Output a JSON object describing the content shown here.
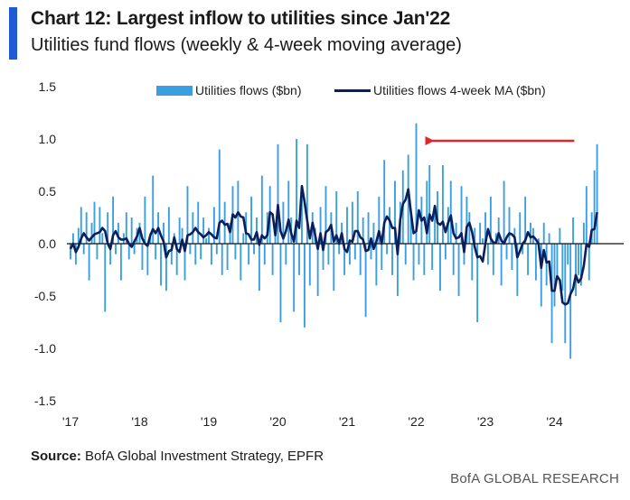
{
  "header": {
    "title": "Chart 12: Largest inflow to utilities since Jan'22",
    "subtitle": "Utilities fund flows (weekly & 4-week moving average)"
  },
  "footer": {
    "source_label": "Source:",
    "source_text": "BofA Global Investment Strategy, EPFR",
    "brand": "BofA GLOBAL RESEARCH"
  },
  "colors": {
    "accent": "#1f5bd6",
    "weekly": "#3a9fe0",
    "ma": "#0b1f5c",
    "arrow": "#e3242b"
  },
  "chart_data": {
    "type": "bar",
    "y_unit": "$bn",
    "ylim": [
      -1.5,
      1.5
    ],
    "y_ticks": [
      "1.5",
      "1.0",
      "0.5",
      "0.0",
      "-0.5",
      "-1.0",
      "-1.5"
    ],
    "y_tick_values": [
      1.5,
      1.0,
      0.5,
      0.0,
      -0.5,
      -1.0,
      -1.5
    ],
    "x_ticks": [
      "'17",
      "'18",
      "'19",
      "'20",
      "'21",
      "'22",
      "'23",
      "'24"
    ],
    "x_range": [
      "2017-01",
      "2024-06"
    ],
    "legend": {
      "placement": "top",
      "weekly_label": "Utilities flows ($bn)",
      "ma_label": "Utilities flows 4-week MA ($bn)"
    },
    "annotation": {
      "type": "arrow",
      "from": "2024-06",
      "to": "2022-01",
      "level": 1.0
    },
    "series": [
      {
        "name": "Utilities flows ($bn)",
        "kind": "bar",
        "points_per_year": 26,
        "values": [
          -0.15,
          0.1,
          -0.2,
          0.15,
          0.35,
          -0.1,
          0.3,
          -0.35,
          0.2,
          0.4,
          -0.15,
          0.35,
          0.1,
          -0.65,
          0.3,
          -0.2,
          0.45,
          -0.1,
          0.2,
          -0.35,
          0.1,
          0.3,
          -0.15,
          0.25,
          -0.1,
          0.15,
          0.2,
          -0.25,
          0.45,
          -0.3,
          0.1,
          0.65,
          -0.15,
          0.3,
          -0.4,
          0.2,
          -0.45,
          0.35,
          -0.2,
          0.1,
          -0.3,
          0.25,
          0.15,
          -0.35,
          0.55,
          -0.1,
          0.3,
          -0.2,
          0.4,
          -0.15,
          0.25,
          0.05,
          0.15,
          -0.2,
          0.35,
          -0.1,
          0.9,
          -0.3,
          0.4,
          -0.25,
          0.2,
          0.55,
          -0.15,
          0.6,
          -0.35,
          0.1,
          0.3,
          -0.2,
          0.45,
          -0.1,
          0.25,
          -0.45,
          0.65,
          -0.2,
          0.3,
          0.55,
          -0.3,
          0.2,
          0.95,
          -0.75,
          0.4,
          -0.2,
          0.6,
          0.25,
          -0.65,
          1.0,
          -0.3,
          0.5,
          -0.8,
          0.95,
          -0.4,
          0.3,
          0.15,
          -0.5,
          0.35,
          -0.25,
          0.55,
          -0.2,
          0.3,
          -0.45,
          0.5,
          -0.1,
          0.2,
          -0.3,
          0.35,
          -0.2,
          0.4,
          -0.15,
          0.5,
          -0.3,
          0.25,
          -0.7,
          0.3,
          -0.15,
          0.2,
          -0.4,
          0.45,
          -0.25,
          0.8,
          -0.1,
          0.35,
          -0.3,
          0.6,
          -0.5,
          0.4,
          0.7,
          -0.2,
          0.85,
          0.3,
          -0.35,
          1.15,
          -0.2,
          0.45,
          -0.3,
          0.6,
          0.75,
          -0.25,
          0.3,
          0.5,
          -0.45,
          0.75,
          -0.15,
          0.35,
          0.6,
          -0.3,
          0.2,
          -0.5,
          0.55,
          -0.2,
          0.45,
          0.3,
          -0.35,
          0.15,
          -0.75,
          0.2,
          0.05,
          0.3,
          -0.2,
          0.45,
          -0.3,
          0.1,
          0.25,
          -0.4,
          0.6,
          -0.15,
          0.35,
          -0.25,
          0.15,
          -0.5,
          0.3,
          -0.1,
          0.45,
          -0.3,
          0.2,
          0.15,
          -0.35,
          0.05,
          -0.6,
          0.2,
          -0.4,
          0.1,
          -0.95,
          -0.6,
          -0.3,
          0.15,
          -0.45,
          -0.95,
          -0.2,
          -1.1,
          0.25,
          -0.5,
          -0.3,
          -0.4,
          0.2,
          0.55,
          -0.35,
          0.3,
          0.7,
          0.95
        ]
      },
      {
        "name": "Utilities flows 4-week MA ($bn)",
        "kind": "line",
        "points_per_year": 26,
        "values": [
          -0.05,
          0.0,
          -0.08,
          -0.03,
          0.05,
          0.1,
          0.06,
          0.03,
          0.06,
          0.09,
          0.1,
          0.11,
          0.15,
          0.12,
          0.0,
          -0.05,
          0.08,
          0.12,
          0.06,
          0.04,
          0.04,
          0.05,
          0.0,
          -0.03,
          0.02,
          0.07,
          0.15,
          0.05,
          0.0,
          -0.02,
          0.08,
          0.14,
          0.1,
          0.15,
          0.08,
          0.02,
          -0.13,
          -0.07,
          -0.06,
          0.06,
          -0.05,
          -0.08,
          0.04,
          -0.07,
          0.08,
          0.09,
          0.11,
          0.15,
          0.11,
          0.09,
          0.06,
          0.08,
          0.11,
          0.09,
          0.06,
          0.05,
          0.2,
          0.22,
          0.18,
          0.19,
          0.11,
          0.28,
          0.25,
          0.3,
          0.26,
          0.25,
          0.1,
          0.09,
          0.04,
          0.04,
          0.11,
          -0.01,
          0.08,
          0.05,
          0.08,
          0.3,
          0.28,
          0.08,
          0.37,
          0.12,
          0.05,
          0.12,
          0.23,
          0.1,
          0.02,
          0.22,
          0.15,
          0.55,
          0.4,
          0.22,
          0.05,
          0.2,
          0.08,
          -0.05,
          0.1,
          -0.06,
          0.11,
          0.13,
          0.18,
          0.02,
          0.08,
          0.0,
          0.1,
          -0.05,
          -0.08,
          0.03,
          0.02,
          0.12,
          0.12,
          0.06,
          0.04,
          -0.07,
          -0.06,
          0.05,
          -0.05,
          0.02,
          0.12,
          0.0,
          0.2,
          0.26,
          0.22,
          0.15,
          0.15,
          -0.1,
          0.23,
          0.38,
          0.42,
          0.52,
          0.3,
          0.1,
          0.12,
          0.32,
          0.22,
          0.25,
          0.1,
          0.28,
          0.22,
          0.36,
          0.2,
          0.18,
          0.21,
          0.11,
          0.2,
          0.27,
          0.1,
          0.05,
          0.06,
          0.1,
          -0.08,
          0.16,
          0.2,
          0.11,
          -0.03,
          -0.13,
          -0.12,
          -0.17,
          0.0,
          0.14,
          0.05,
          0.01,
          0.01,
          0.1,
          0.03,
          0.0,
          0.06,
          0.1,
          0.09,
          0.06,
          -0.13,
          -0.07,
          0.0,
          0.03,
          0.11,
          0.06,
          0.07,
          0.04,
          0.0,
          -0.23,
          -0.06,
          -0.18,
          -0.17,
          -0.45,
          -0.45,
          -0.31,
          -0.35,
          -0.56,
          -0.58,
          -0.57,
          -0.48,
          -0.43,
          -0.3,
          -0.37,
          -0.33,
          -0.21,
          -0.01,
          -0.03,
          0.13,
          0.14,
          0.3
        ]
      }
    ]
  }
}
